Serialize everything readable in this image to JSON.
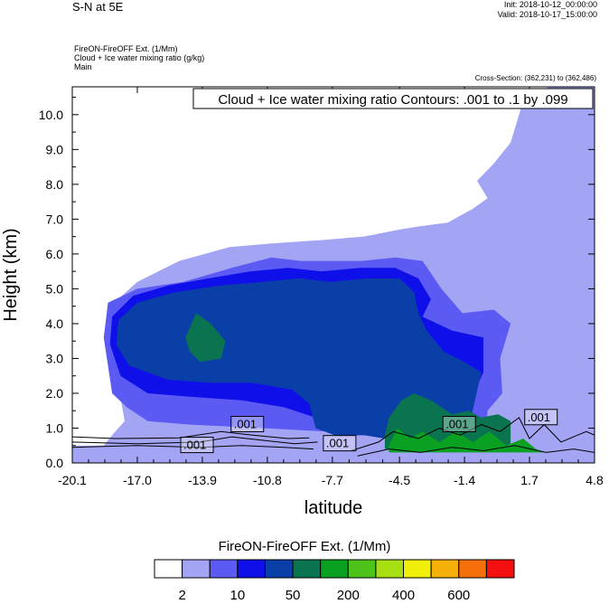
{
  "header": {
    "title": "S-N at 5E",
    "init": "Init: 2018-10-12_00:00:00",
    "valid": "Valid: 2018-10-17_15:00:00",
    "field_line1": "FireON-FireOFF Ext.   (1/Mm)",
    "field_line2": "Cloud + Ice water mixing ratio   (g/kg)",
    "field_line3": "Main",
    "cross_section": "Cross-Section: (362,231) to (362,486)",
    "contour_note": "Cloud + Ice water mixing ratio Contours: .001 to .1 by .099"
  },
  "colorbar": {
    "title": "FireON-FireOFF Ext.  (1/Mm)",
    "colors": [
      "#ffffff",
      "#a4a4f5",
      "#5b5bf3",
      "#0f0fea",
      "#0a3fa8",
      "#0a7350",
      "#0aa022",
      "#4cc21a",
      "#a6e012",
      "#f0f00a",
      "#f5b00a",
      "#f5700a",
      "#f51010"
    ],
    "labels": [
      "2",
      "10",
      "50",
      "200",
      "400",
      "600"
    ]
  },
  "chart_data": {
    "type": "heatmap",
    "title": "S-N at 5E",
    "xlabel": "latitude",
    "ylabel": "Height (km)",
    "xlim": [
      -20.1,
      4.8
    ],
    "ylim": [
      0.0,
      10.8
    ],
    "x_ticks": [
      "-20.1",
      "-17.0",
      "-13.9",
      "-10.8",
      "-7.7",
      "-4.5",
      "-1.4",
      "1.7",
      "4.8"
    ],
    "y_ticks": [
      "0.0",
      "1.0",
      "2.0",
      "3.0",
      "4.0",
      "5.0",
      "6.0",
      "7.0",
      "8.0",
      "9.0",
      "10.0"
    ],
    "contour_labels": [
      ".001",
      ".001",
      ".001",
      ".001",
      ".001"
    ],
    "shading_levels": [
      2,
      10,
      50,
      200,
      400,
      600
    ],
    "layers": [
      {
        "level": "light",
        "color": "#a4a4f5",
        "points": [
          [
            -17.6,
            1.2
          ],
          [
            -17.9,
            2.2
          ],
          [
            -18.3,
            3.6
          ],
          [
            -18.1,
            4.6
          ],
          [
            -17.0,
            5.2
          ],
          [
            -15.0,
            5.8
          ],
          [
            -12.6,
            6.2
          ],
          [
            -10.6,
            6.3
          ],
          [
            -8.2,
            6.4
          ],
          [
            -6.2,
            6.5
          ],
          [
            -4.5,
            6.7
          ],
          [
            -3.5,
            6.8
          ],
          [
            -2.2,
            6.9
          ],
          [
            -1.0,
            7.3
          ],
          [
            -0.3,
            7.6
          ],
          [
            -0.8,
            8.1
          ],
          [
            0.0,
            8.6
          ],
          [
            0.8,
            9.2
          ],
          [
            1.3,
            10.2
          ],
          [
            2.6,
            10.8
          ],
          [
            4.8,
            10.8
          ],
          [
            4.8,
            0.0
          ],
          [
            -20.1,
            0.0
          ],
          [
            -20.1,
            0.5
          ],
          [
            -18.6,
            0.5
          ],
          [
            -18.2,
            0.8
          ]
        ]
      },
      {
        "level": "medium",
        "color": "#5b5bf3",
        "points": [
          [
            -18.2,
            2.0
          ],
          [
            -18.6,
            3.6
          ],
          [
            -18.4,
            4.6
          ],
          [
            -17.0,
            5.0
          ],
          [
            -14.8,
            5.2
          ],
          [
            -12.5,
            5.6
          ],
          [
            -10.6,
            5.9
          ],
          [
            -9.2,
            5.8
          ],
          [
            -7.9,
            5.8
          ],
          [
            -6.3,
            5.8
          ],
          [
            -4.7,
            5.9
          ],
          [
            -3.4,
            5.8
          ],
          [
            -2.5,
            5.0
          ],
          [
            -1.5,
            4.3
          ],
          [
            0.0,
            4.4
          ],
          [
            0.8,
            4.0
          ],
          [
            0.3,
            3.0
          ],
          [
            0.4,
            2.0
          ],
          [
            -0.3,
            1.5
          ],
          [
            -0.4,
            0.8
          ],
          [
            -3.5,
            0.8
          ],
          [
            -8.0,
            0.9
          ],
          [
            -11.0,
            1.0
          ],
          [
            -14.5,
            1.1
          ],
          [
            -16.5,
            1.2
          ],
          [
            -17.5,
            1.6
          ]
        ]
      },
      {
        "level": "dark",
        "color": "#0f0fea",
        "points": [
          [
            -17.8,
            2.5
          ],
          [
            -18.3,
            3.4
          ],
          [
            -18.2,
            4.2
          ],
          [
            -17.2,
            4.8
          ],
          [
            -15.5,
            5.1
          ],
          [
            -13.6,
            5.3
          ],
          [
            -11.6,
            5.5
          ],
          [
            -9.8,
            5.6
          ],
          [
            -8.2,
            5.5
          ],
          [
            -6.4,
            5.6
          ],
          [
            -4.7,
            5.6
          ],
          [
            -3.6,
            5.3
          ],
          [
            -3.0,
            4.7
          ],
          [
            -3.4,
            4.2
          ],
          [
            -2.0,
            3.8
          ],
          [
            -0.5,
            3.6
          ],
          [
            -0.5,
            2.6
          ],
          [
            -1.2,
            1.7
          ],
          [
            -1.7,
            0.9
          ],
          [
            -4.2,
            0.8
          ],
          [
            -6.8,
            0.8
          ],
          [
            -8.0,
            1.2
          ],
          [
            -10.0,
            1.6
          ],
          [
            -12.0,
            1.8
          ],
          [
            -14.5,
            1.9
          ],
          [
            -16.5,
            2.0
          ]
        ]
      },
      {
        "level": "navy",
        "color": "#0a3fa8",
        "points": [
          [
            -17.4,
            2.8
          ],
          [
            -18.0,
            3.4
          ],
          [
            -17.9,
            4.1
          ],
          [
            -17.0,
            4.6
          ],
          [
            -15.2,
            4.9
          ],
          [
            -13.0,
            5.1
          ],
          [
            -11.0,
            5.2
          ],
          [
            -9.3,
            5.3
          ],
          [
            -7.8,
            5.2
          ],
          [
            -6.0,
            5.3
          ],
          [
            -4.5,
            5.3
          ],
          [
            -3.8,
            4.9
          ],
          [
            -3.6,
            4.3
          ],
          [
            -3.2,
            3.8
          ],
          [
            -2.4,
            3.2
          ],
          [
            -1.4,
            2.9
          ],
          [
            -0.6,
            2.6
          ],
          [
            -0.9,
            1.8
          ],
          [
            -1.2,
            1.0
          ],
          [
            -1.6,
            0.7
          ],
          [
            -3.5,
            0.7
          ],
          [
            -5.2,
            0.7
          ],
          [
            -6.2,
            0.8
          ],
          [
            -7.6,
            0.8
          ],
          [
            -8.5,
            1.0
          ],
          [
            -8.8,
            1.7
          ],
          [
            -9.6,
            2.1
          ],
          [
            -11.5,
            2.3
          ],
          [
            -13.6,
            2.3
          ],
          [
            -15.6,
            2.4
          ]
        ]
      },
      {
        "level": "teal",
        "color": "#0a7350",
        "points": [
          [
            -14.7,
            3.6
          ],
          [
            -14.2,
            4.3
          ],
          [
            -13.5,
            4.0
          ],
          [
            -12.8,
            3.5
          ],
          [
            -13.0,
            3.0
          ],
          [
            -14.0,
            2.9
          ],
          [
            -14.5,
            3.2
          ]
        ]
      },
      {
        "level": "teal",
        "color": "#0a7350",
        "points": [
          [
            -5.2,
            0.8
          ],
          [
            -5.0,
            1.3
          ],
          [
            -4.4,
            1.8
          ],
          [
            -3.8,
            2.0
          ],
          [
            -3.0,
            1.8
          ],
          [
            -2.0,
            1.4
          ],
          [
            -1.2,
            1.5
          ],
          [
            -0.6,
            1.3
          ],
          [
            0.2,
            1.4
          ],
          [
            0.8,
            1.2
          ],
          [
            0.8,
            0.4
          ],
          [
            -5.2,
            0.4
          ]
        ]
      },
      {
        "level": "green",
        "color": "#0aa022",
        "points": [
          [
            -5.0,
            0.5
          ],
          [
            -4.6,
            1.0
          ],
          [
            -4.0,
            0.7
          ],
          [
            -3.4,
            0.9
          ],
          [
            -2.6,
            0.6
          ],
          [
            -1.8,
            0.9
          ],
          [
            -1.0,
            0.6
          ],
          [
            -0.2,
            0.9
          ],
          [
            0.6,
            0.5
          ],
          [
            1.4,
            0.7
          ],
          [
            2.0,
            0.4
          ],
          [
            2.4,
            0.3
          ],
          [
            -5.0,
            0.3
          ]
        ]
      }
    ]
  }
}
